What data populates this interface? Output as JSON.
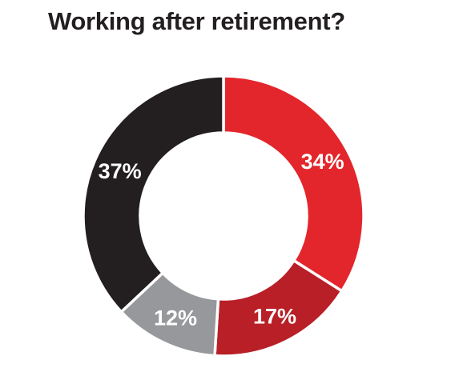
{
  "chart_data": {
    "type": "pie",
    "title": "Working after retirement?",
    "donut": true,
    "slices": [
      {
        "label": "34%",
        "value": 34,
        "color": "#e3262b"
      },
      {
        "label": "17%",
        "value": 17,
        "color": "#b81f27"
      },
      {
        "label": "12%",
        "value": 12,
        "color": "#97989b"
      },
      {
        "label": "37%",
        "value": 37,
        "color": "#231f20"
      }
    ],
    "start_angle": "12 o'clock",
    "direction": "clockwise",
    "legend": "none"
  }
}
